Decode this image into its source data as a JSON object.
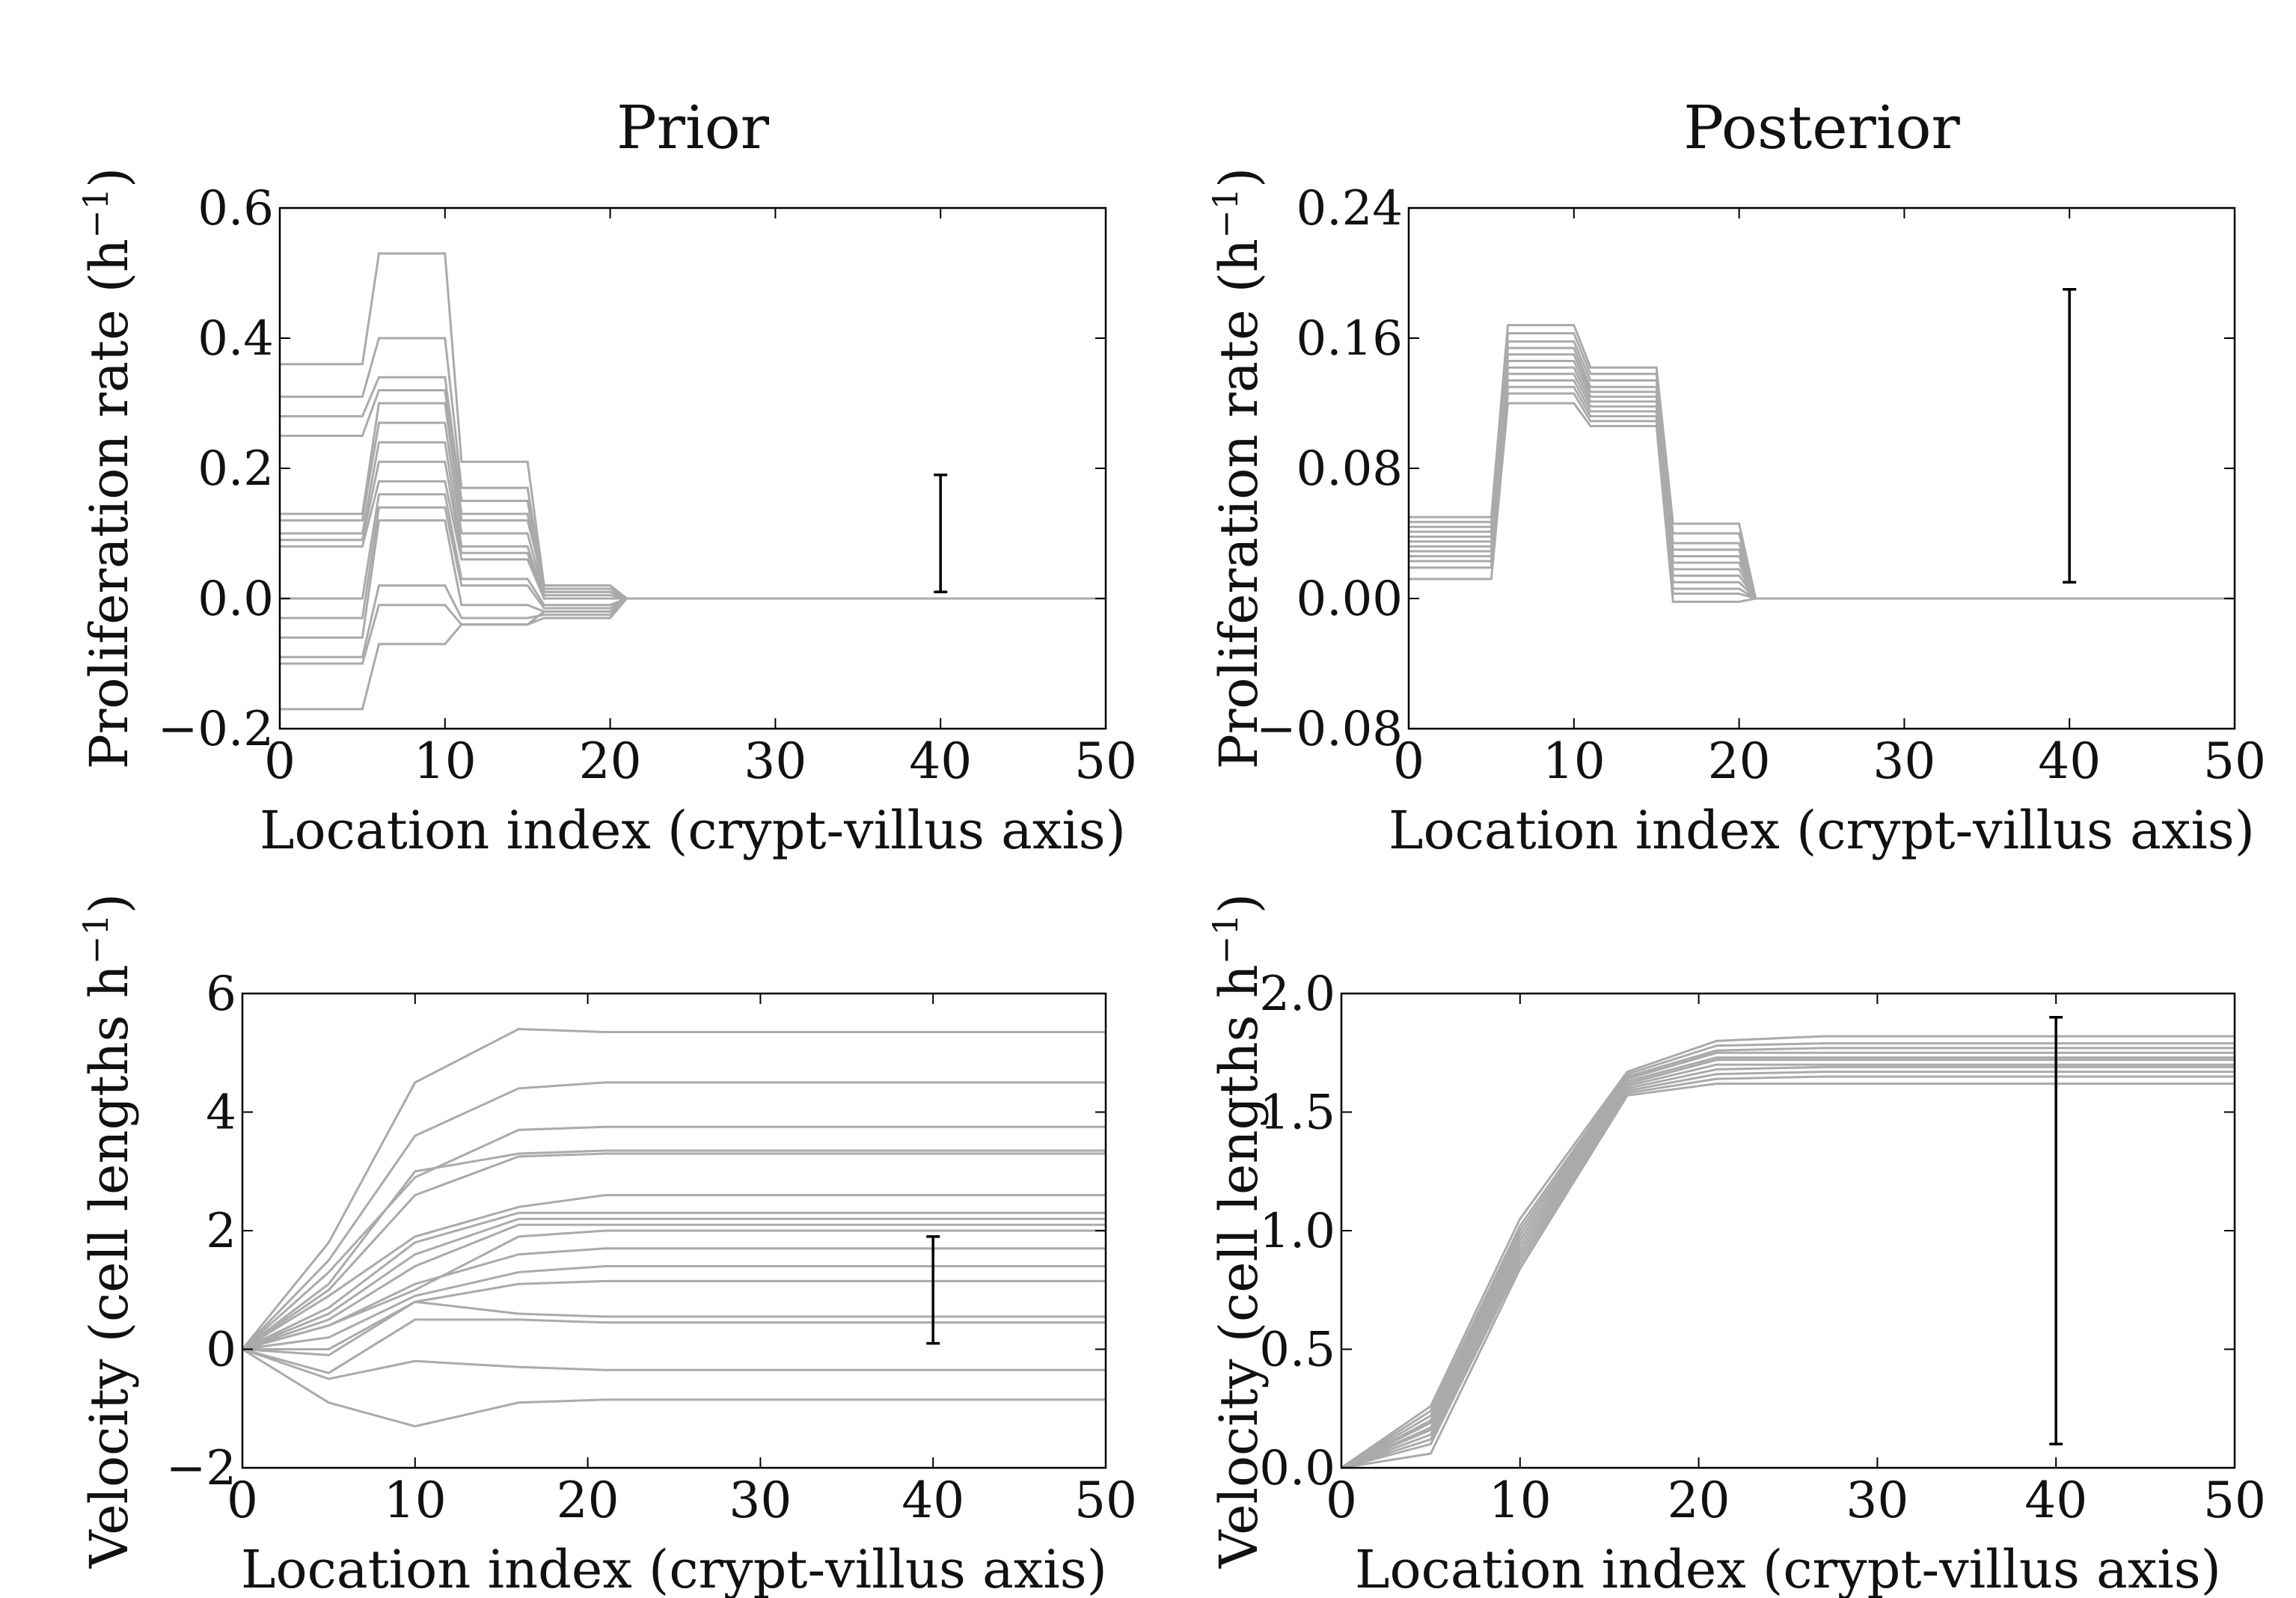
{
  "chart_data": [
    {
      "panel": "prior-proliferation",
      "type": "line",
      "title": "Prior",
      "xlabel": "Location index (crypt-villus axis)",
      "ylabel_main": "Proliferation rate (h",
      "ylabel_sup": "−1",
      "ylabel_end": ")",
      "xlim": [
        0,
        50
      ],
      "ylim": [
        -0.2,
        0.6
      ],
      "xticks": [
        "0",
        "10",
        "20",
        "30",
        "40",
        "50"
      ],
      "yticks": [
        "−0.2",
        "0.0",
        "0.2",
        "0.4",
        "0.6"
      ],
      "ytick_values": [
        -0.2,
        0.0,
        0.2,
        0.4,
        0.6
      ],
      "grid": false,
      "line_color": "#aaaaaa",
      "shape": "step",
      "levels": [
        [
          0.36,
          0.53,
          0.21,
          0.02,
          0.0
        ],
        [
          0.31,
          0.4,
          0.17,
          0.015,
          0.0
        ],
        [
          0.28,
          0.34,
          0.15,
          0.01,
          0.0
        ],
        [
          0.25,
          0.32,
          0.13,
          0.01,
          0.0
        ],
        [
          0.13,
          0.3,
          0.12,
          0.02,
          0.0
        ],
        [
          0.12,
          0.27,
          0.1,
          0.005,
          0.0
        ],
        [
          0.1,
          0.24,
          0.08,
          0.0,
          0.0
        ],
        [
          0.09,
          0.21,
          0.07,
          0.0,
          0.0
        ],
        [
          0.08,
          0.18,
          0.06,
          0.0,
          0.0
        ],
        [
          0.0,
          0.16,
          0.03,
          -0.01,
          0.0
        ],
        [
          -0.03,
          0.14,
          0.02,
          -0.015,
          0.0
        ],
        [
          -0.06,
          0.12,
          -0.01,
          -0.02,
          0.0
        ],
        [
          -0.09,
          0.02,
          -0.03,
          -0.025,
          0.0
        ],
        [
          -0.1,
          -0.01,
          -0.04,
          -0.03,
          0.0
        ],
        [
          -0.17,
          -0.07,
          -0.04,
          -0.02,
          0.0
        ]
      ],
      "errorbar": {
        "x": 40,
        "y_low": 0.01,
        "y_high": 0.19
      }
    },
    {
      "panel": "posterior-proliferation",
      "type": "line",
      "title": "Posterior",
      "xlabel": "Location index (crypt-villus axis)",
      "ylabel_main": "Proliferation rate (h",
      "ylabel_sup": "−1",
      "ylabel_end": ")",
      "xlim": [
        0,
        50
      ],
      "ylim": [
        -0.08,
        0.24
      ],
      "xticks": [
        "0",
        "10",
        "20",
        "30",
        "40",
        "50"
      ],
      "yticks": [
        "−0.08",
        "0.00",
        "0.08",
        "0.16",
        "0.24"
      ],
      "ytick_values": [
        -0.08,
        0.0,
        0.08,
        0.16,
        0.24
      ],
      "grid": false,
      "line_color": "#aaaaaa",
      "shape": "step",
      "levels": [
        [
          0.05,
          0.168,
          0.142,
          0.046,
          0.0
        ],
        [
          0.047,
          0.163,
          0.138,
          0.04,
          0.0
        ],
        [
          0.044,
          0.158,
          0.134,
          0.034,
          0.0
        ],
        [
          0.041,
          0.154,
          0.13,
          0.03,
          0.0
        ],
        [
          0.038,
          0.15,
          0.127,
          0.026,
          0.0
        ],
        [
          0.035,
          0.146,
          0.124,
          0.022,
          0.0
        ],
        [
          0.032,
          0.142,
          0.121,
          0.018,
          0.0
        ],
        [
          0.029,
          0.138,
          0.118,
          0.014,
          0.0
        ],
        [
          0.026,
          0.134,
          0.115,
          0.01,
          0.0
        ],
        [
          0.023,
          0.13,
          0.112,
          0.006,
          0.0
        ],
        [
          0.019,
          0.126,
          0.109,
          0.003,
          0.0
        ],
        [
          0.012,
          0.12,
          0.106,
          -0.002,
          0.0
        ]
      ],
      "errorbar": {
        "x": 40,
        "y_low": 0.01,
        "y_high": 0.19
      }
    },
    {
      "panel": "prior-velocity",
      "type": "line",
      "title": "",
      "xlabel": "Location index (crypt-villus axis)",
      "ylabel_main": "Velocity (cell lengths h",
      "ylabel_sup": "−1",
      "ylabel_end": ")",
      "xlim": [
        0,
        50
      ],
      "ylim": [
        -2,
        6
      ],
      "xticks": [
        "0",
        "10",
        "20",
        "30",
        "40",
        "50"
      ],
      "yticks": [
        "−2",
        "0",
        "2",
        "4",
        "6"
      ],
      "ytick_values": [
        -2,
        0,
        2,
        4,
        6
      ],
      "grid": false,
      "line_color": "#aaaaaa",
      "x": [
        0,
        5,
        10,
        16,
        21,
        27,
        32,
        37,
        43,
        48,
        50
      ],
      "series": [
        {
          "values": [
            0,
            1.8,
            4.5,
            5.4,
            5.35,
            5.35,
            5.35,
            5.35,
            5.35,
            5.35,
            5.35
          ]
        },
        {
          "values": [
            0,
            1.5,
            3.6,
            4.4,
            4.5,
            4.5,
            4.5,
            4.5,
            4.5,
            4.5,
            4.5
          ]
        },
        {
          "values": [
            0,
            1.3,
            2.9,
            3.7,
            3.75,
            3.75,
            3.75,
            3.75,
            3.75,
            3.75,
            3.75
          ]
        },
        {
          "values": [
            0,
            1.1,
            3.0,
            3.3,
            3.35,
            3.35,
            3.35,
            3.35,
            3.35,
            3.35,
            3.35
          ]
        },
        {
          "values": [
            0,
            1.0,
            2.6,
            3.25,
            3.3,
            3.3,
            3.3,
            3.3,
            3.3,
            3.3,
            3.3
          ]
        },
        {
          "values": [
            0,
            0.9,
            1.9,
            2.4,
            2.6,
            2.6,
            2.6,
            2.6,
            2.6,
            2.6,
            2.6
          ]
        },
        {
          "values": [
            0,
            0.7,
            1.8,
            2.3,
            2.3,
            2.3,
            2.3,
            2.3,
            2.3,
            2.3,
            2.3
          ]
        },
        {
          "values": [
            0,
            0.6,
            1.6,
            2.2,
            2.2,
            2.2,
            2.2,
            2.2,
            2.2,
            2.2,
            2.2
          ]
        },
        {
          "values": [
            0,
            0.5,
            1.4,
            2.1,
            2.1,
            2.1,
            2.1,
            2.1,
            2.1,
            2.1,
            2.1
          ]
        },
        {
          "values": [
            0,
            0.4,
            1.0,
            1.9,
            2.0,
            2.0,
            2.0,
            2.0,
            2.0,
            2.0,
            2.0
          ]
        },
        {
          "values": [
            0,
            0.4,
            1.1,
            1.6,
            1.7,
            1.7,
            1.7,
            1.7,
            1.7,
            1.7,
            1.7
          ]
        },
        {
          "values": [
            0,
            0.2,
            0.9,
            1.3,
            1.4,
            1.4,
            1.4,
            1.4,
            1.4,
            1.4,
            1.4
          ]
        },
        {
          "values": [
            0,
            -0.1,
            0.8,
            1.1,
            1.15,
            1.15,
            1.15,
            1.15,
            1.15,
            1.15,
            1.15
          ]
        },
        {
          "values": [
            0,
            0.0,
            0.8,
            0.6,
            0.55,
            0.55,
            0.55,
            0.55,
            0.55,
            0.55,
            0.55
          ]
        },
        {
          "values": [
            0,
            -0.4,
            0.5,
            0.5,
            0.45,
            0.45,
            0.45,
            0.45,
            0.45,
            0.45,
            0.45
          ]
        },
        {
          "values": [
            0,
            -0.5,
            -0.2,
            -0.3,
            -0.35,
            -0.35,
            -0.35,
            -0.35,
            -0.35,
            -0.35,
            -0.35
          ]
        },
        {
          "values": [
            0,
            -0.9,
            -1.3,
            -0.9,
            -0.85,
            -0.85,
            -0.85,
            -0.85,
            -0.85,
            -0.85,
            -0.85
          ]
        }
      ],
      "errorbar": {
        "x": 40,
        "y_low": 0.1,
        "y_high": 1.9
      }
    },
    {
      "panel": "posterior-velocity",
      "type": "line",
      "title": "",
      "xlabel": "Location index (crypt-villus axis)",
      "ylabel_main": "Velocity (cell lengths h",
      "ylabel_sup": "−1",
      "ylabel_end": ")",
      "xlim": [
        0,
        50
      ],
      "ylim": [
        0.0,
        2.0
      ],
      "xticks": [
        "0",
        "10",
        "20",
        "30",
        "40",
        "50"
      ],
      "yticks": [
        "0.0",
        "0.5",
        "1.0",
        "1.5",
        "2.0"
      ],
      "ytick_values": [
        0.0,
        0.5,
        1.0,
        1.5,
        2.0
      ],
      "grid": false,
      "line_color": "#aaaaaa",
      "x": [
        0,
        5,
        10,
        16,
        21,
        27,
        32,
        37,
        43,
        48,
        50
      ],
      "series": [
        {
          "values": [
            0,
            0.26,
            1.05,
            1.67,
            1.8,
            1.82,
            1.82,
            1.82,
            1.82,
            1.82,
            1.82
          ]
        },
        {
          "values": [
            0,
            0.24,
            1.02,
            1.66,
            1.78,
            1.79,
            1.79,
            1.79,
            1.79,
            1.79,
            1.79
          ]
        },
        {
          "values": [
            0,
            0.22,
            1.0,
            1.65,
            1.76,
            1.77,
            1.77,
            1.77,
            1.77,
            1.77,
            1.77
          ]
        },
        {
          "values": [
            0,
            0.2,
            0.98,
            1.64,
            1.75,
            1.75,
            1.75,
            1.75,
            1.75,
            1.75,
            1.75
          ]
        },
        {
          "values": [
            0,
            0.19,
            0.96,
            1.63,
            1.73,
            1.73,
            1.73,
            1.73,
            1.73,
            1.73,
            1.73
          ]
        },
        {
          "values": [
            0,
            0.17,
            0.94,
            1.62,
            1.72,
            1.72,
            1.72,
            1.72,
            1.72,
            1.72,
            1.72
          ]
        },
        {
          "values": [
            0,
            0.16,
            0.92,
            1.61,
            1.7,
            1.7,
            1.7,
            1.7,
            1.7,
            1.7,
            1.7
          ]
        },
        {
          "values": [
            0,
            0.14,
            0.9,
            1.6,
            1.68,
            1.69,
            1.69,
            1.69,
            1.69,
            1.69,
            1.69
          ]
        },
        {
          "values": [
            0,
            0.12,
            0.88,
            1.59,
            1.66,
            1.67,
            1.67,
            1.67,
            1.67,
            1.67,
            1.67
          ]
        },
        {
          "values": [
            0,
            0.1,
            0.86,
            1.58,
            1.64,
            1.65,
            1.65,
            1.65,
            1.65,
            1.65,
            1.65
          ]
        },
        {
          "values": [
            0,
            0.06,
            0.84,
            1.57,
            1.62,
            1.62,
            1.62,
            1.62,
            1.62,
            1.62,
            1.62
          ]
        }
      ],
      "errorbar": {
        "x": 40,
        "y_low": 0.1,
        "y_high": 1.9
      }
    }
  ]
}
